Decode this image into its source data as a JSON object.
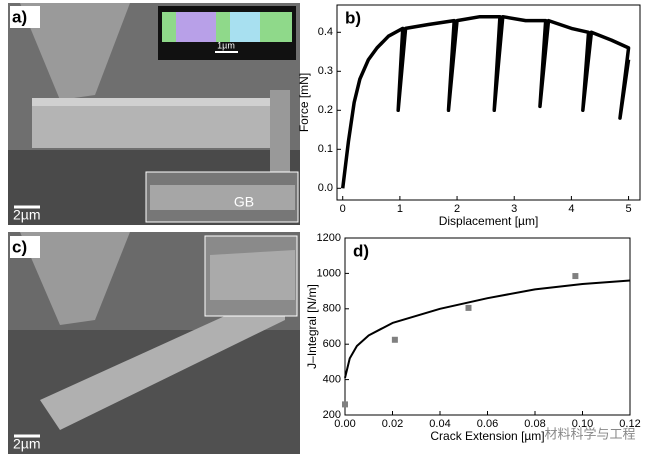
{
  "panels": {
    "a": {
      "label": "a)",
      "scale_bar": "2µm",
      "inset_scale": "1µm",
      "inset_label": "GB"
    },
    "c": {
      "label": "c)",
      "scale_bar": "2µm"
    }
  },
  "watermark": "材料科学与工程",
  "chart_data": [
    {
      "type": "line",
      "label": "b)",
      "x_label": "Displacement [µm]",
      "y_label": "Force [mN]",
      "color": "#000000",
      "x": [
        0,
        0.1,
        0.2,
        0.3,
        0.45,
        0.6,
        0.8,
        1.05,
        0.97,
        1.1,
        1.5,
        1.95,
        1.85,
        2.0,
        2.4,
        2.75,
        2.65,
        2.8,
        3.2,
        3.55,
        3.45,
        3.6,
        4.0,
        4.3,
        4.2,
        4.35,
        4.7,
        5.0,
        4.85,
        5.0
      ],
      "values": [
        0,
        0.12,
        0.22,
        0.28,
        0.33,
        0.36,
        0.39,
        0.41,
        0.2,
        0.41,
        0.42,
        0.43,
        0.2,
        0.43,
        0.44,
        0.44,
        0.2,
        0.44,
        0.43,
        0.43,
        0.21,
        0.43,
        0.41,
        0.4,
        0.2,
        0.4,
        0.38,
        0.36,
        0.18,
        0.33
      ],
      "xlim": [
        -0.1,
        5.2
      ],
      "ylim": [
        -0.03,
        0.47
      ],
      "xticks": [
        0,
        1,
        2,
        3,
        4,
        5
      ],
      "yticks": [
        {
          "value": 0,
          "label": "0.0"
        },
        0.1,
        0.2,
        0.3,
        0.4
      ]
    },
    {
      "type": "scatter",
      "label": "d)",
      "x_label": "Crack Extension [µm]",
      "y_label": "J–Integral [N/m]",
      "series": [
        {
          "mode": "markers",
          "color": "#808080",
          "x": [
            0,
            0.021,
            0.052,
            0.097
          ],
          "values": [
            260,
            625,
            805,
            985
          ]
        },
        {
          "mode": "line",
          "color": "#000000",
          "x": [
            0,
            0.002,
            0.005,
            0.01,
            0.02,
            0.04,
            0.06,
            0.08,
            0.1,
            0.12
          ],
          "values": [
            410,
            520,
            590,
            650,
            720,
            800,
            860,
            910,
            940,
            960
          ]
        }
      ],
      "xlim": [
        0,
        0.12
      ],
      "ylim": [
        200,
        1200
      ],
      "xticks": [
        {
          "value": 0,
          "label": "0.00"
        },
        0.02,
        0.04,
        0.06,
        0.08,
        {
          "value": 0.1,
          "label": "0.10"
        },
        0.12
      ],
      "yticks": [
        200,
        400,
        600,
        800,
        1000,
        1200
      ]
    }
  ]
}
